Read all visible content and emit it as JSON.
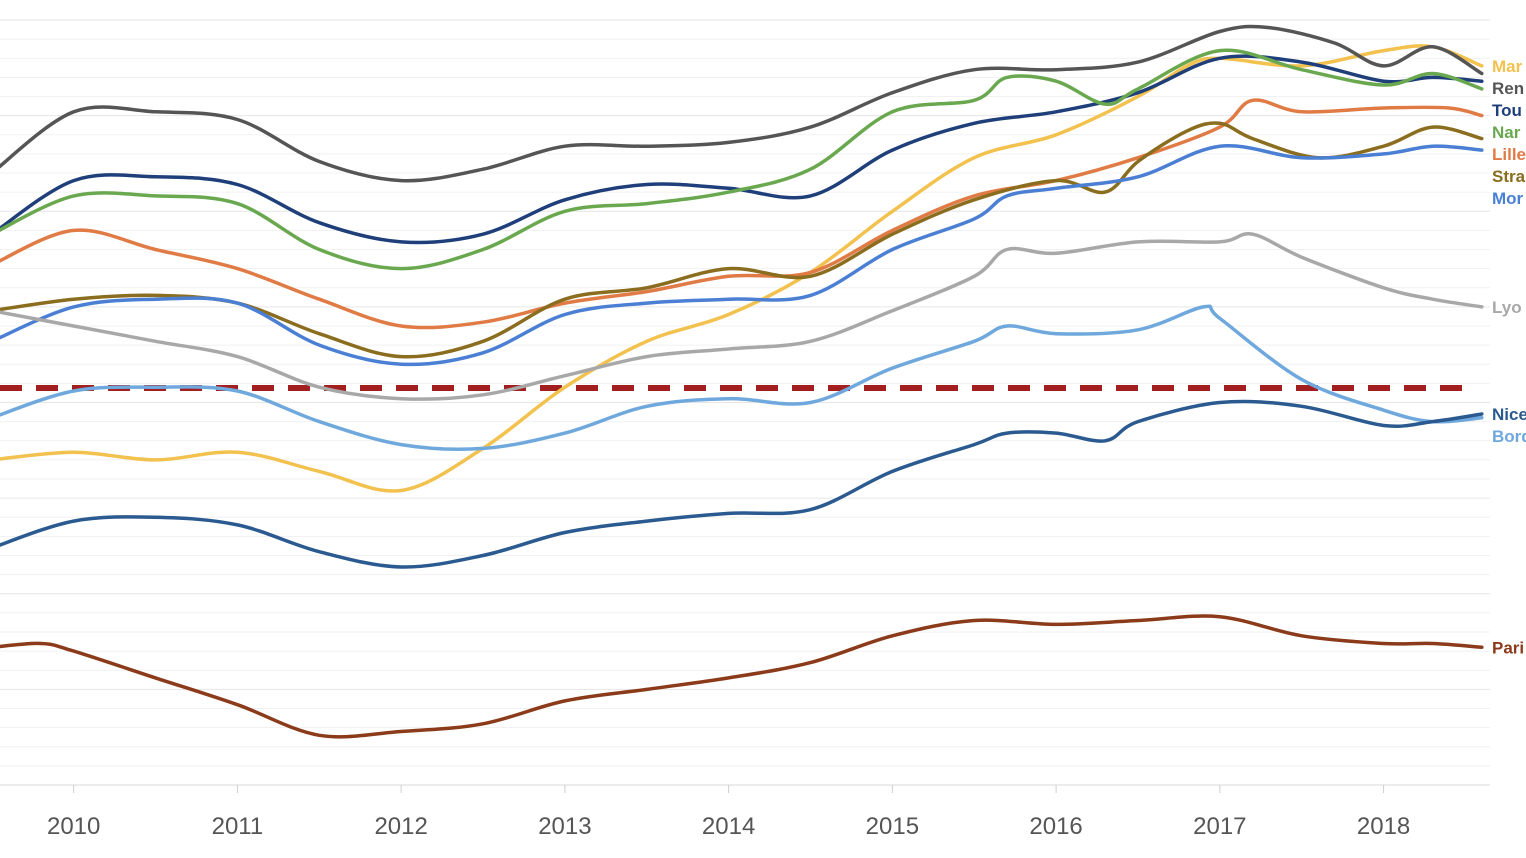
{
  "chart_data": {
    "type": "line",
    "title": "",
    "xlabel": "",
    "ylabel": "",
    "xlim": [
      2009.55,
      2018.65
    ],
    "ylim": [
      0,
      100
    ],
    "x_ticks": [
      2010,
      2011,
      2012,
      2013,
      2014,
      2015,
      2016,
      2017,
      2018
    ],
    "x_tick_labels": [
      "2010",
      "2011",
      "2012",
      "2013",
      "2014",
      "2015",
      "2016",
      "2017",
      "2018"
    ],
    "grid": "horizontal",
    "legend": "right-edge labels",
    "reference_line": {
      "y": 51.9,
      "color": "#a31e1e",
      "style": "dashed"
    },
    "series": [
      {
        "name": "Mar",
        "color": "#f2c14e",
        "points": [
          [
            2009.5,
            42.5
          ],
          [
            2010,
            43.5
          ],
          [
            2010.5,
            42.5
          ],
          [
            2011,
            43.5
          ],
          [
            2011.5,
            41
          ],
          [
            2012,
            38.5
          ],
          [
            2012.5,
            44
          ],
          [
            2013,
            52
          ],
          [
            2013.5,
            58
          ],
          [
            2014,
            61.5
          ],
          [
            2014.5,
            67
          ],
          [
            2015,
            75
          ],
          [
            2015.5,
            82
          ],
          [
            2016,
            85
          ],
          [
            2016.5,
            90
          ],
          [
            2016.8,
            94
          ],
          [
            2017,
            95
          ],
          [
            2017.5,
            94
          ],
          [
            2018,
            96
          ],
          [
            2018.3,
            96.5
          ],
          [
            2018.6,
            94
          ]
        ]
      },
      {
        "name": "Ren",
        "color": "#555555",
        "points": [
          [
            2009.5,
            80
          ],
          [
            2010,
            88
          ],
          [
            2010.5,
            88
          ],
          [
            2011,
            87
          ],
          [
            2011.5,
            81.5
          ],
          [
            2012,
            79
          ],
          [
            2012.5,
            80.5
          ],
          [
            2013,
            83.5
          ],
          [
            2013.5,
            83.5
          ],
          [
            2014,
            84
          ],
          [
            2014.5,
            86
          ],
          [
            2015,
            90.5
          ],
          [
            2015.5,
            93.5
          ],
          [
            2016,
            93.5
          ],
          [
            2016.5,
            94.5
          ],
          [
            2017,
            98.5
          ],
          [
            2017.3,
            99
          ],
          [
            2017.7,
            97
          ],
          [
            2018,
            94
          ],
          [
            2018.3,
            96.5
          ],
          [
            2018.6,
            93
          ]
        ]
      },
      {
        "name": "Tou",
        "color": "#1f3f7a",
        "points": [
          [
            2009.5,
            72
          ],
          [
            2010,
            79
          ],
          [
            2010.5,
            79.5
          ],
          [
            2011,
            78.5
          ],
          [
            2011.5,
            73.5
          ],
          [
            2012,
            71
          ],
          [
            2012.5,
            72
          ],
          [
            2013,
            76.5
          ],
          [
            2013.5,
            78.5
          ],
          [
            2014,
            78
          ],
          [
            2014.5,
            77
          ],
          [
            2015,
            83
          ],
          [
            2015.5,
            86.5
          ],
          [
            2016,
            88
          ],
          [
            2016.5,
            90.5
          ],
          [
            2017,
            95
          ],
          [
            2017.5,
            94.5
          ],
          [
            2018,
            92
          ],
          [
            2018.3,
            92.5
          ],
          [
            2018.6,
            92
          ]
        ]
      },
      {
        "name": "Nar",
        "color": "#6aa84f",
        "points": [
          [
            2009.5,
            72
          ],
          [
            2010,
            77
          ],
          [
            2010.5,
            77
          ],
          [
            2011,
            76
          ],
          [
            2011.5,
            70
          ],
          [
            2012,
            67.5
          ],
          [
            2012.5,
            70
          ],
          [
            2013,
            75
          ],
          [
            2013.5,
            76
          ],
          [
            2014,
            77.5
          ],
          [
            2014.5,
            80.5
          ],
          [
            2015,
            88
          ],
          [
            2015.5,
            89.5
          ],
          [
            2015.7,
            92.5
          ],
          [
            2016,
            92
          ],
          [
            2016.3,
            89
          ],
          [
            2016.5,
            91
          ],
          [
            2017,
            96
          ],
          [
            2017.5,
            93.5
          ],
          [
            2018,
            91.5
          ],
          [
            2018.3,
            93
          ],
          [
            2018.6,
            91
          ]
        ]
      },
      {
        "name": "Lille",
        "color": "#e07b45",
        "points": [
          [
            2009.5,
            68
          ],
          [
            2010,
            72.5
          ],
          [
            2010.5,
            70
          ],
          [
            2011,
            67.5
          ],
          [
            2011.5,
            63.5
          ],
          [
            2012,
            60
          ],
          [
            2012.5,
            60.5
          ],
          [
            2013,
            63
          ],
          [
            2013.5,
            64.5
          ],
          [
            2014,
            66.5
          ],
          [
            2014.5,
            67
          ],
          [
            2015,
            72.5
          ],
          [
            2015.5,
            77
          ],
          [
            2016,
            79
          ],
          [
            2016.5,
            82
          ],
          [
            2017,
            86
          ],
          [
            2017.2,
            89.5
          ],
          [
            2017.5,
            88
          ],
          [
            2018,
            88.5
          ],
          [
            2018.4,
            88.5
          ],
          [
            2018.6,
            87.5
          ]
        ]
      },
      {
        "name": "Stra",
        "color": "#8a6d1e",
        "points": [
          [
            2009.5,
            62
          ],
          [
            2010,
            63.5
          ],
          [
            2010.5,
            64
          ],
          [
            2011,
            63
          ],
          [
            2011.5,
            59
          ],
          [
            2012,
            56
          ],
          [
            2012.5,
            58
          ],
          [
            2013,
            63.5
          ],
          [
            2013.5,
            65
          ],
          [
            2014,
            67.5
          ],
          [
            2014.5,
            66.5
          ],
          [
            2015,
            72
          ],
          [
            2015.5,
            76.5
          ],
          [
            2016,
            79
          ],
          [
            2016.3,
            77.5
          ],
          [
            2016.5,
            81.5
          ],
          [
            2016.8,
            85.5
          ],
          [
            2017,
            86.5
          ],
          [
            2017.2,
            84.5
          ],
          [
            2017.6,
            82
          ],
          [
            2018,
            83.5
          ],
          [
            2018.3,
            86
          ],
          [
            2018.6,
            84.5
          ]
        ]
      },
      {
        "name": "Mor",
        "color": "#4a7fd4",
        "points": [
          [
            2009.5,
            58
          ],
          [
            2010,
            62.5
          ],
          [
            2010.5,
            63.5
          ],
          [
            2011,
            63
          ],
          [
            2011.5,
            57.5
          ],
          [
            2012,
            55
          ],
          [
            2012.5,
            56.5
          ],
          [
            2013,
            61.5
          ],
          [
            2013.5,
            63
          ],
          [
            2014,
            63.5
          ],
          [
            2014.5,
            64
          ],
          [
            2015,
            70
          ],
          [
            2015.5,
            74
          ],
          [
            2015.7,
            77
          ],
          [
            2016,
            78
          ],
          [
            2016.5,
            79.5
          ],
          [
            2017,
            83.5
          ],
          [
            2017.5,
            82
          ],
          [
            2018,
            82.5
          ],
          [
            2018.3,
            83.5
          ],
          [
            2018.6,
            83
          ]
        ]
      },
      {
        "name": "Lyo",
        "color": "#a8a8a8",
        "points": [
          [
            2009.5,
            62
          ],
          [
            2010,
            60
          ],
          [
            2010.5,
            58
          ],
          [
            2011,
            56
          ],
          [
            2011.5,
            52
          ],
          [
            2012,
            50.5
          ],
          [
            2012.5,
            51
          ],
          [
            2013,
            53.5
          ],
          [
            2013.5,
            56
          ],
          [
            2014,
            57
          ],
          [
            2014.5,
            58
          ],
          [
            2015,
            62
          ],
          [
            2015.5,
            66.5
          ],
          [
            2015.7,
            70
          ],
          [
            2016,
            69.5
          ],
          [
            2016.5,
            71
          ],
          [
            2017,
            71
          ],
          [
            2017.2,
            72
          ],
          [
            2017.5,
            69
          ],
          [
            2018,
            65
          ],
          [
            2018.3,
            63.5
          ],
          [
            2018.6,
            62.5
          ]
        ]
      },
      {
        "name": "Bord",
        "color": "#6fa8dc",
        "points": [
          [
            2009.5,
            48
          ],
          [
            2010,
            51.5
          ],
          [
            2010.5,
            52
          ],
          [
            2011,
            51.5
          ],
          [
            2011.5,
            47.5
          ],
          [
            2012,
            44.5
          ],
          [
            2012.5,
            44
          ],
          [
            2013,
            46
          ],
          [
            2013.5,
            49.5
          ],
          [
            2014,
            50.5
          ],
          [
            2014.5,
            50
          ],
          [
            2015,
            54.5
          ],
          [
            2015.5,
            58
          ],
          [
            2015.7,
            60
          ],
          [
            2016,
            59
          ],
          [
            2016.5,
            59.5
          ],
          [
            2016.9,
            62.5
          ],
          [
            2017,
            61
          ],
          [
            2017.5,
            53
          ],
          [
            2018,
            49
          ],
          [
            2018.3,
            47.5
          ],
          [
            2018.6,
            48
          ]
        ]
      },
      {
        "name": "Nice",
        "color": "#2a5a8f",
        "points": [
          [
            2009.5,
            31
          ],
          [
            2010,
            34.5
          ],
          [
            2010.5,
            35
          ],
          [
            2011,
            34
          ],
          [
            2011.5,
            30.5
          ],
          [
            2012,
            28.5
          ],
          [
            2012.5,
            30
          ],
          [
            2013,
            33
          ],
          [
            2013.5,
            34.5
          ],
          [
            2014,
            35.5
          ],
          [
            2014.5,
            36
          ],
          [
            2015,
            41
          ],
          [
            2015.5,
            44.5
          ],
          [
            2015.7,
            46
          ],
          [
            2016,
            46
          ],
          [
            2016.3,
            45
          ],
          [
            2016.5,
            47.5
          ],
          [
            2017,
            50
          ],
          [
            2017.5,
            49.5
          ],
          [
            2018,
            47
          ],
          [
            2018.3,
            47.5
          ],
          [
            2018.6,
            48.5
          ]
        ]
      },
      {
        "name": "Pari",
        "color": "#8b3a1a",
        "points": [
          [
            2009.5,
            18
          ],
          [
            2009.8,
            18.5
          ],
          [
            2010,
            17.5
          ],
          [
            2010.5,
            14
          ],
          [
            2011,
            10.5
          ],
          [
            2011.5,
            6.5
          ],
          [
            2012,
            7
          ],
          [
            2012.5,
            8
          ],
          [
            2013,
            11
          ],
          [
            2013.5,
            12.5
          ],
          [
            2014,
            14
          ],
          [
            2014.5,
            16
          ],
          [
            2015,
            19.5
          ],
          [
            2015.5,
            21.5
          ],
          [
            2016,
            21
          ],
          [
            2016.5,
            21.5
          ],
          [
            2017,
            22
          ],
          [
            2017.5,
            19.5
          ],
          [
            2018,
            18.5
          ],
          [
            2018.3,
            18.5
          ],
          [
            2018.6,
            18
          ]
        ]
      }
    ]
  }
}
